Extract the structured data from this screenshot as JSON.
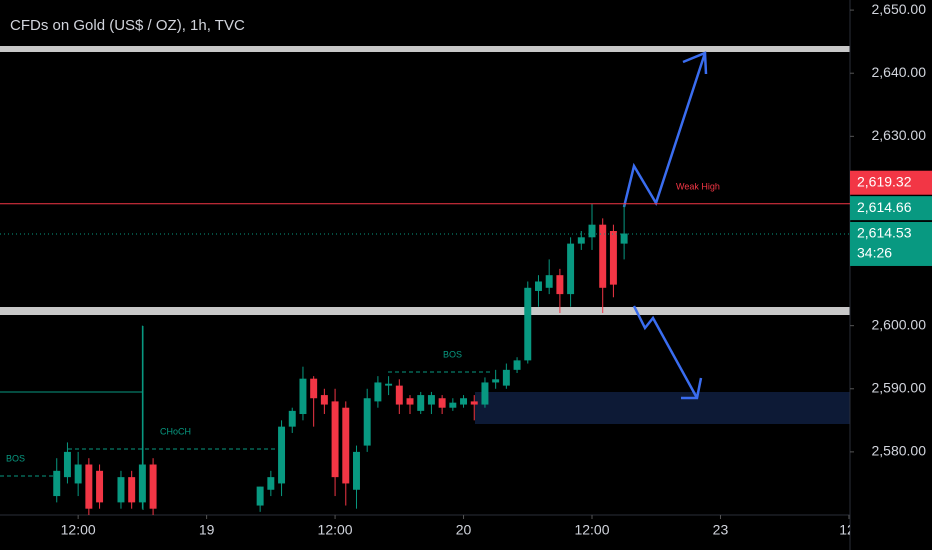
{
  "chart_data": {
    "type": "candlestick",
    "title": "CFDs on Gold (US$ / OZ), 1h, TVC",
    "x": [
      10,
      11,
      12,
      13,
      14,
      16,
      17,
      18,
      19,
      29,
      30,
      31,
      32,
      33,
      34,
      35,
      36,
      37,
      38,
      39,
      40,
      41,
      42,
      43,
      44,
      45,
      46,
      47,
      48,
      49,
      50,
      51,
      52,
      53,
      54,
      55,
      56,
      57,
      58,
      59,
      60,
      61,
      62,
      63
    ],
    "open": [
      2573,
      2576,
      2575,
      2578,
      2577,
      2572,
      2576,
      2572,
      2578,
      2571.5,
      2574,
      2575,
      2584,
      2586,
      2591.6,
      2589,
      2588,
      2587,
      2574,
      2581,
      2588,
      2590.5,
      2590.5,
      2588.5,
      2586.5,
      2587.5,
      2588.5,
      2587,
      2587.5,
      2588,
      2587.5,
      2591,
      2590.5,
      2593,
      2594.5,
      2605.5,
      2606,
      2608,
      2605,
      2613,
      2614,
      2616,
      2615,
      2613
    ],
    "high": [
      2579,
      2581.5,
      2580,
      2579,
      2578,
      2577,
      2577,
      2600,
      2579,
      2574.5,
      2577,
      2585,
      2587,
      2593.5,
      2592,
      2590,
      2590,
      2588,
      2581,
      2590,
      2592,
      2592,
      2591.5,
      2589,
      2589.5,
      2589.5,
      2589,
      2588.5,
      2589,
      2589,
      2591.8,
      2593,
      2594,
      2595,
      2607,
      2608,
      2610.5,
      2609,
      2614,
      2615,
      2619.3,
      2617,
      2616,
      2619.3
    ],
    "low": [
      2572,
      2575,
      2573,
      2570,
      2571,
      2571,
      2571,
      2571,
      2570,
      2570.5,
      2573,
      2573,
      2583,
      2585,
      2584,
      2586,
      2573,
      2571.5,
      2571,
      2580,
      2587,
      2589,
      2586,
      2586,
      2586,
      2586,
      2586,
      2586.5,
      2587,
      2585,
      2587,
      2590,
      2590,
      2592.5,
      2594,
      2603,
      2605,
      2602,
      2603,
      2612,
      2612,
      2602,
      2604.5,
      2610.5
    ],
    "close": [
      2577,
      2580,
      2578,
      2571,
      2572,
      2576,
      2572,
      2578,
      2571,
      2574.5,
      2576,
      2584,
      2586.5,
      2591.6,
      2588.5,
      2587.5,
      2576,
      2575,
      2580,
      2588.5,
      2591,
      2590.8,
      2587.5,
      2587.5,
      2589,
      2589,
      2587,
      2587.8,
      2588.5,
      2587.5,
      2591,
      2591.5,
      2593,
      2594.5,
      2606,
      2607,
      2608,
      2605,
      2613,
      2614,
      2616,
      2606,
      2606.5,
      2614.6
    ],
    "up_color": "#089981",
    "down_color": "#f23645",
    "xlim": [
      4.7,
      84.1
    ],
    "ylim": [
      2570,
      2651.6
    ],
    "xticks": [
      {
        "value": 12,
        "label": "12:00"
      },
      {
        "value": 24,
        "label": "19"
      },
      {
        "value": 36,
        "label": "12:00"
      },
      {
        "value": 48,
        "label": "20"
      },
      {
        "value": 60,
        "label": "12:00"
      },
      {
        "value": 72,
        "label": "23"
      },
      {
        "value": 84,
        "label": "12:"
      }
    ],
    "yticks": [
      {
        "value": 2650,
        "label": "2,650.00"
      },
      {
        "value": 2640,
        "label": "2,640.00"
      },
      {
        "value": 2630,
        "label": "2,630.00"
      },
      {
        "value": 2600,
        "label": "2,600.00"
      },
      {
        "value": 2590,
        "label": "2,590.00"
      },
      {
        "value": 2580,
        "label": "2,580.00"
      }
    ],
    "price_labels": [
      {
        "value": 2619.32,
        "label": "2,619.32",
        "color": "#f23645"
      },
      {
        "value": 2614.66,
        "label": "2,614.66",
        "color": "#089981"
      },
      {
        "value": 2614.53,
        "label": "2,614.53",
        "color": "#089981"
      }
    ],
    "countdown": "34:26",
    "annotations": [
      "BOS",
      "CHoCH",
      "BOS",
      "Weak High"
    ]
  }
}
